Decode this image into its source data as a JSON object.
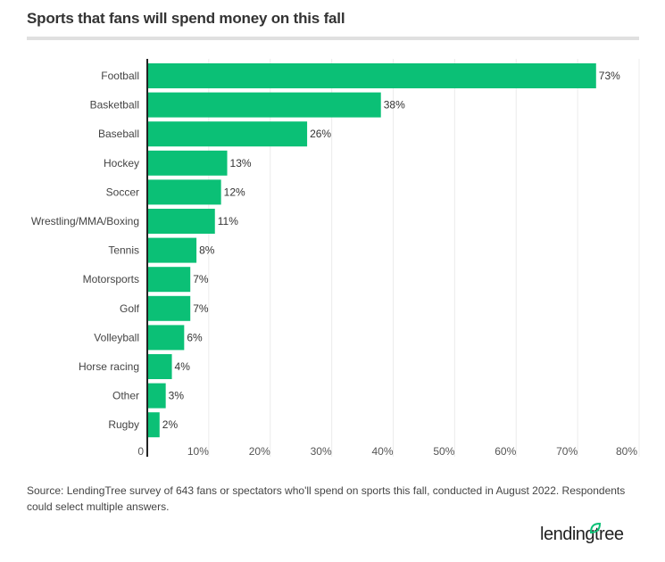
{
  "chart_data": {
    "type": "bar",
    "orientation": "horizontal",
    "title": "Sports that fans will spend money on this fall",
    "categories": [
      "Football",
      "Basketball",
      "Baseball",
      "Hockey",
      "Soccer",
      "Wrestling/MMA/Boxing",
      "Tennis",
      "Motorsports",
      "Golf",
      "Volleyball",
      "Horse racing",
      "Other",
      "Rugby"
    ],
    "values": [
      73,
      38,
      26,
      13,
      12,
      11,
      8,
      7,
      7,
      6,
      4,
      3,
      2
    ],
    "data_labels": [
      "73%",
      "38%",
      "26%",
      "13%",
      "12%",
      "11%",
      "8%",
      "7%",
      "7%",
      "6%",
      "4%",
      "3%",
      "2%"
    ],
    "xlim": [
      0,
      80
    ],
    "x_ticks": [
      "0",
      "10%",
      "20%",
      "30%",
      "40%",
      "50%",
      "60%",
      "70%",
      "80%"
    ],
    "grid": true,
    "bar_color": "#0bc076"
  },
  "source": "Source: LendingTree survey of 643 fans or spectators who'll spend on sports this fall, conducted in August 2022. Respondents could select multiple answers.",
  "logo": "lendingtree"
}
